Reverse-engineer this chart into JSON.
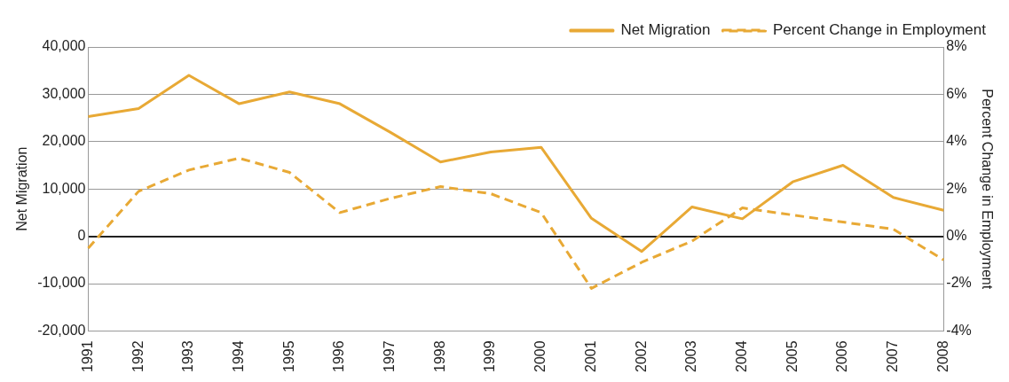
{
  "chart_data": {
    "type": "line",
    "xlabel": null,
    "ylabel": "Net Migration",
    "y2label": "Percent Change in Employment",
    "categories": [
      "1991",
      "1992",
      "1993",
      "1994",
      "1995",
      "1996",
      "1997",
      "1998",
      "1999",
      "2000",
      "2001",
      "2002",
      "2003",
      "2004",
      "2005",
      "2006",
      "2007",
      "2008"
    ],
    "series": [
      {
        "name": "Net Migration",
        "color": "#e8a935",
        "line_style": "solid",
        "values": [
          25300,
          27000,
          34000,
          28000,
          30500,
          28000,
          22000,
          15700,
          17800,
          18800,
          3800,
          -3200,
          6200,
          3700,
          11500,
          15000,
          8200,
          5500
        ]
      },
      {
        "name": "Percent Change in Employment",
        "color": "#e8a935",
        "line_style": "dashed",
        "axis": "y2",
        "values": [
          -0.5,
          1.9,
          2.8,
          3.3,
          2.7,
          1.0,
          1.6,
          2.1,
          1.8,
          1.0,
          -2.2,
          -1.1,
          -0.2,
          1.2,
          0.9,
          0.6,
          0.3,
          -1.0
        ]
      }
    ],
    "ylim": [
      -20000,
      40000
    ],
    "yticks": [
      {
        "value": -20000,
        "label": "-20,000"
      },
      {
        "value": -10000,
        "label": "-10,000"
      },
      {
        "value": 0,
        "label": "0"
      },
      {
        "value": 10000,
        "label": "10,000"
      },
      {
        "value": 20000,
        "label": "20,000"
      },
      {
        "value": 30000,
        "label": "30,000"
      },
      {
        "value": 40000,
        "label": "40,000"
      }
    ],
    "y2lim": [
      -4,
      8
    ],
    "y2ticks": [
      {
        "value": -4,
        "label": "-4%"
      },
      {
        "value": -2,
        "label": "-2%"
      },
      {
        "value": 0,
        "label": "0%"
      },
      {
        "value": 2,
        "label": "2%"
      },
      {
        "value": 4,
        "label": "4%"
      },
      {
        "value": 6,
        "label": "6%"
      },
      {
        "value": 8,
        "label": "8%"
      }
    ],
    "grid": "y",
    "legend": "top right",
    "marker": "none"
  }
}
